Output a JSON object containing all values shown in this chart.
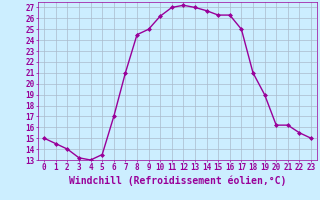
{
  "x": [
    0,
    1,
    2,
    3,
    4,
    5,
    6,
    7,
    8,
    9,
    10,
    11,
    12,
    13,
    14,
    15,
    16,
    17,
    18,
    19,
    20,
    21,
    22,
    23
  ],
  "y": [
    15,
    14.5,
    14,
    13.2,
    13,
    13.5,
    17,
    21,
    24.5,
    25,
    26.2,
    27,
    27.2,
    27,
    26.7,
    26.3,
    26.3,
    25,
    21,
    19,
    16.2,
    16.2,
    15.5,
    15
  ],
  "line_color": "#990099",
  "marker": "D",
  "marker_size": 2.0,
  "bg_color": "#cceeff",
  "grid_color": "#aabbcc",
  "xlabel": "Windchill (Refroidissement éolien,°C)",
  "ylim": [
    13,
    27.5
  ],
  "xlim": [
    -0.5,
    23.5
  ],
  "yticks": [
    13,
    14,
    15,
    16,
    17,
    18,
    19,
    20,
    21,
    22,
    23,
    24,
    25,
    26,
    27
  ],
  "xticks": [
    0,
    1,
    2,
    3,
    4,
    5,
    6,
    7,
    8,
    9,
    10,
    11,
    12,
    13,
    14,
    15,
    16,
    17,
    18,
    19,
    20,
    21,
    22,
    23
  ],
  "tick_fontsize": 5.5,
  "xlabel_fontsize": 7.0,
  "line_width": 1.0
}
